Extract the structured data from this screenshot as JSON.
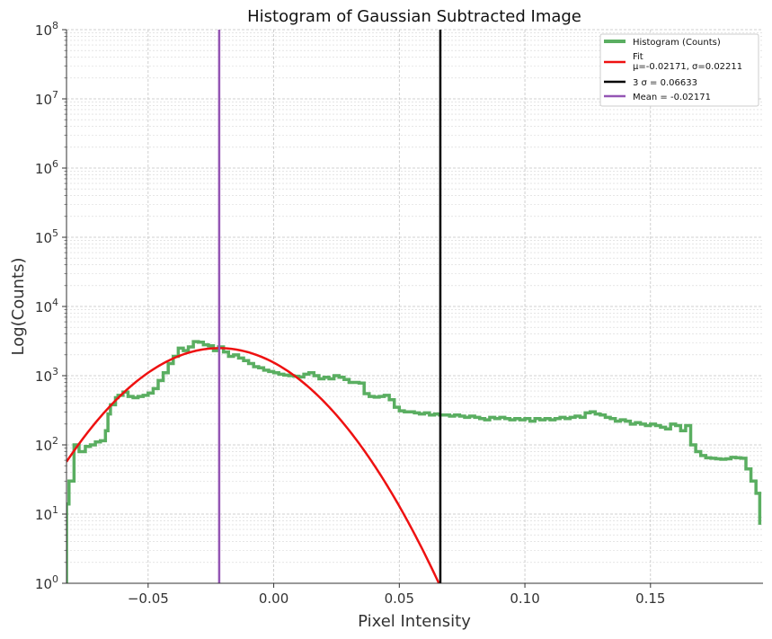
{
  "chart_data": {
    "type": "line",
    "title": "Histogram of Gaussian Subtracted Image",
    "xlabel": "Pixel Intensity",
    "ylabel": "Log(Counts)",
    "xlim": [
      -0.0825,
      0.1948
    ],
    "ylim": [
      1,
      100000000
    ],
    "yscale": "log",
    "grid": true,
    "legend_position": "top-right",
    "x_ticks": [
      {
        "value": -0.05,
        "label": "−0.05"
      },
      {
        "value": 0.0,
        "label": "0.00"
      },
      {
        "value": 0.05,
        "label": "0.05"
      },
      {
        "value": 0.1,
        "label": "0.10"
      },
      {
        "value": 0.15,
        "label": "0.15"
      }
    ],
    "y_ticks": [
      {
        "value": 1,
        "base": "10",
        "exp": "0"
      },
      {
        "value": 10,
        "base": "10",
        "exp": "1"
      },
      {
        "value": 100,
        "base": "10",
        "exp": "2"
      },
      {
        "value": 1000,
        "base": "10",
        "exp": "3"
      },
      {
        "value": 10000,
        "base": "10",
        "exp": "4"
      },
      {
        "value": 100000,
        "base": "10",
        "exp": "5"
      },
      {
        "value": 1000000,
        "base": "10",
        "exp": "6"
      },
      {
        "value": 10000000,
        "base": "10",
        "exp": "7"
      },
      {
        "value": 100000000,
        "base": "10",
        "exp": "8"
      }
    ],
    "series": [
      {
        "name": "Histogram (Counts)",
        "kind": "step",
        "color": "#5aae61",
        "x": [
          -0.0825,
          -0.0815,
          -0.0795,
          -0.0775,
          -0.075,
          -0.073,
          -0.071,
          -0.069,
          -0.067,
          -0.066,
          -0.065,
          -0.063,
          -0.062,
          -0.06,
          -0.058,
          -0.056,
          -0.054,
          -0.052,
          -0.05,
          -0.048,
          -0.046,
          -0.044,
          -0.042,
          -0.04,
          -0.038,
          -0.036,
          -0.034,
          -0.032,
          -0.03,
          -0.028,
          -0.026,
          -0.024,
          -0.022,
          -0.02,
          -0.018,
          -0.016,
          -0.014,
          -0.012,
          -0.01,
          -0.008,
          -0.006,
          -0.004,
          -0.002,
          0.0,
          0.002,
          0.004,
          0.006,
          0.008,
          0.01,
          0.012,
          0.014,
          0.016,
          0.018,
          0.02,
          0.022,
          0.024,
          0.026,
          0.028,
          0.03,
          0.032,
          0.034,
          0.036,
          0.038,
          0.04,
          0.042,
          0.044,
          0.046,
          0.048,
          0.05,
          0.052,
          0.054,
          0.056,
          0.058,
          0.06,
          0.062,
          0.064,
          0.066,
          0.068,
          0.07,
          0.072,
          0.074,
          0.076,
          0.078,
          0.08,
          0.082,
          0.084,
          0.086,
          0.088,
          0.09,
          0.092,
          0.094,
          0.096,
          0.098,
          0.1,
          0.102,
          0.104,
          0.106,
          0.108,
          0.11,
          0.112,
          0.114,
          0.116,
          0.118,
          0.12,
          0.122,
          0.124,
          0.126,
          0.128,
          0.13,
          0.132,
          0.134,
          0.136,
          0.138,
          0.14,
          0.142,
          0.144,
          0.146,
          0.148,
          0.15,
          0.152,
          0.154,
          0.156,
          0.158,
          0.16,
          0.162,
          0.164,
          0.166,
          0.168,
          0.17,
          0.172,
          0.174,
          0.176,
          0.178,
          0.18,
          0.182,
          0.184,
          0.186,
          0.188,
          0.19,
          0.192,
          0.1935
        ],
        "y": [
          14,
          30,
          100,
          80,
          95,
          100,
          110,
          115,
          160,
          280,
          380,
          480,
          520,
          580,
          500,
          480,
          500,
          520,
          560,
          650,
          850,
          1100,
          1500,
          1900,
          2500,
          2300,
          2600,
          3100,
          3050,
          2800,
          2700,
          2300,
          2600,
          2200,
          1900,
          2000,
          1800,
          1650,
          1500,
          1350,
          1300,
          1200,
          1150,
          1100,
          1050,
          1020,
          1000,
          980,
          960,
          1050,
          1100,
          1000,
          900,
          950,
          900,
          1000,
          950,
          880,
          800,
          800,
          780,
          550,
          500,
          490,
          500,
          520,
          450,
          350,
          310,
          300,
          300,
          290,
          280,
          290,
          270,
          280,
          270,
          270,
          260,
          270,
          260,
          250,
          260,
          250,
          240,
          230,
          250,
          240,
          250,
          240,
          230,
          240,
          230,
          240,
          220,
          240,
          230,
          240,
          230,
          240,
          250,
          240,
          250,
          260,
          250,
          290,
          300,
          280,
          270,
          250,
          240,
          220,
          230,
          220,
          200,
          210,
          200,
          190,
          200,
          190,
          180,
          170,
          200,
          190,
          160,
          190,
          100,
          80,
          70,
          65,
          64,
          63,
          62,
          63,
          66,
          65,
          64,
          45,
          30,
          20,
          7
        ]
      },
      {
        "name": "Fit",
        "label_line2": "μ=-0.02171, σ=0.02211",
        "kind": "gaussian",
        "color": "#ee1111",
        "mu": -0.02171,
        "sigma": 0.02211,
        "amplitude": 2500
      },
      {
        "name": "3 σ  = 0.06633",
        "kind": "vline",
        "color": "#000000",
        "x": 0.06633
      },
      {
        "name": "Mean = -0.02171",
        "kind": "vline",
        "color": "#9455b4",
        "x": -0.02171
      }
    ]
  }
}
